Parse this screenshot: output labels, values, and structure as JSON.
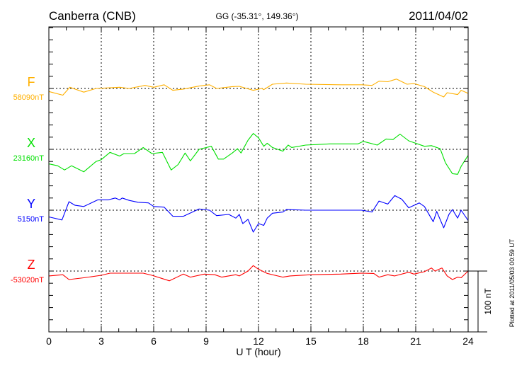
{
  "header": {
    "station": "Canberra (CNB)",
    "coords": "GG (-35.31°, 149.36°)",
    "date": "2011/04/02"
  },
  "footer": {
    "plotted": "Plotted at 2011/05/03 00:59 UT",
    "scale_label": "100 nT"
  },
  "chart_data": {
    "type": "line",
    "title": "Canberra (CNB)",
    "subtitle": "GG (-35.31°, 149.36°)",
    "xlabel": "U T (hour)",
    "ylabel": "",
    "xlim": [
      0,
      24
    ],
    "xticks": [
      0,
      3,
      6,
      9,
      12,
      15,
      18,
      21,
      24
    ],
    "xtick_labels": [
      "0",
      "3",
      "6",
      "9",
      "12",
      "15",
      "18",
      "21",
      "24"
    ],
    "scale_bar_nT": 100,
    "y_tick_step_nT": 20,
    "grid": true,
    "series": [
      {
        "name": "F",
        "baseline_label": "58090nT",
        "baseline_nT": 58090,
        "color": "#ffb000",
        "points": [
          [
            0,
            -5
          ],
          [
            0.8,
            -11
          ],
          [
            1.2,
            2
          ],
          [
            2,
            -6
          ],
          [
            2.7,
            0
          ],
          [
            4.05,
            2
          ],
          [
            4.6,
            0
          ],
          [
            5.5,
            5
          ],
          [
            6,
            2
          ],
          [
            6.6,
            6
          ],
          [
            7.1,
            -3
          ],
          [
            7.7,
            -1
          ],
          [
            8.6,
            4
          ],
          [
            9.2,
            6
          ],
          [
            9.6,
            0
          ],
          [
            10.5,
            3
          ],
          [
            10.9,
            3.5
          ],
          [
            11.7,
            -3
          ],
          [
            12.2,
            0
          ],
          [
            12.3,
            -2
          ],
          [
            12.8,
            7
          ],
          [
            13.6,
            9
          ],
          [
            14.7,
            7
          ],
          [
            16.7,
            6
          ],
          [
            17.9,
            6
          ],
          [
            18.5,
            5
          ],
          [
            18.9,
            12
          ],
          [
            19.4,
            11
          ],
          [
            19.9,
            15.5
          ],
          [
            20.5,
            7
          ],
          [
            20.9,
            8
          ],
          [
            21.5,
            3
          ],
          [
            22,
            -6
          ],
          [
            22.6,
            -14
          ],
          [
            22.8,
            -7
          ],
          [
            23.4,
            -10
          ],
          [
            23.6,
            -3
          ],
          [
            24,
            -8
          ]
        ]
      },
      {
        "name": "X",
        "baseline_label": "23160nT",
        "baseline_nT": 23160,
        "color": "#00e000",
        "points": [
          [
            0,
            -24
          ],
          [
            0.5,
            -27
          ],
          [
            0.9,
            -34
          ],
          [
            1.3,
            -27
          ],
          [
            2,
            -37
          ],
          [
            2.7,
            -20
          ],
          [
            3,
            -17
          ],
          [
            3.5,
            -5
          ],
          [
            4.05,
            -11
          ],
          [
            4.3,
            -7
          ],
          [
            4.9,
            -7
          ],
          [
            5.4,
            3
          ],
          [
            5.9,
            -7
          ],
          [
            6.5,
            -5
          ],
          [
            7,
            -34
          ],
          [
            7.4,
            -25
          ],
          [
            7.8,
            -6
          ],
          [
            8.1,
            -19
          ],
          [
            8.6,
            0
          ],
          [
            9.3,
            5
          ],
          [
            9.7,
            -16
          ],
          [
            10,
            -16
          ],
          [
            10.5,
            -6
          ],
          [
            10.8,
            1
          ],
          [
            11,
            -6
          ],
          [
            11.4,
            15
          ],
          [
            11.7,
            26
          ],
          [
            12,
            19
          ],
          [
            12.3,
            5
          ],
          [
            12.5,
            10
          ],
          [
            12.8,
            3
          ],
          [
            13.4,
            -3
          ],
          [
            13.7,
            7
          ],
          [
            13.9,
            3
          ],
          [
            14.7,
            7
          ],
          [
            16.1,
            9
          ],
          [
            17.7,
            9
          ],
          [
            18,
            13
          ],
          [
            18.8,
            7
          ],
          [
            19.3,
            17
          ],
          [
            19.7,
            16
          ],
          [
            20.1,
            25
          ],
          [
            20.6,
            14
          ],
          [
            21.5,
            5
          ],
          [
            21.9,
            6
          ],
          [
            22.4,
            1
          ],
          [
            22.7,
            -22
          ],
          [
            23.1,
            -40
          ],
          [
            23.4,
            -41
          ],
          [
            23.6,
            -28
          ],
          [
            24,
            -10
          ]
        ]
      },
      {
        "name": "Y",
        "baseline_label": "5150nT",
        "baseline_nT": 5150,
        "color": "#0000ff",
        "points": [
          [
            0,
            -11
          ],
          [
            0.75,
            -16
          ],
          [
            1.15,
            14
          ],
          [
            1.5,
            8
          ],
          [
            2,
            6
          ],
          [
            2.8,
            17
          ],
          [
            3.4,
            17
          ],
          [
            3.8,
            20
          ],
          [
            4.05,
            17
          ],
          [
            4.2,
            20
          ],
          [
            4.6,
            16
          ],
          [
            5.1,
            13
          ],
          [
            5.7,
            12
          ],
          [
            6,
            6
          ],
          [
            6.6,
            5
          ],
          [
            7.1,
            -10
          ],
          [
            7.7,
            -10
          ],
          [
            8.6,
            2
          ],
          [
            9.2,
            0
          ],
          [
            9.6,
            -9
          ],
          [
            10.3,
            -7
          ],
          [
            10.7,
            -13
          ],
          [
            10.9,
            -7
          ],
          [
            11.1,
            -22
          ],
          [
            11.4,
            -15
          ],
          [
            11.7,
            -36
          ],
          [
            12,
            -22
          ],
          [
            12.3,
            -25
          ],
          [
            12.5,
            -13
          ],
          [
            12.8,
            -5
          ],
          [
            13.4,
            -3
          ],
          [
            13.6,
            1
          ],
          [
            14.7,
            0
          ],
          [
            17.9,
            0
          ],
          [
            18.5,
            -3
          ],
          [
            18.9,
            15
          ],
          [
            19.4,
            10
          ],
          [
            19.8,
            24
          ],
          [
            20.2,
            18
          ],
          [
            20.6,
            4
          ],
          [
            21.2,
            12
          ],
          [
            21.5,
            6
          ],
          [
            22,
            -19
          ],
          [
            22.2,
            -2
          ],
          [
            22.6,
            -29
          ],
          [
            22.9,
            -7
          ],
          [
            23.1,
            1
          ],
          [
            23.4,
            -13
          ],
          [
            23.6,
            0
          ],
          [
            24,
            -17
          ]
        ]
      },
      {
        "name": "Z",
        "baseline_label": "-53020nT",
        "baseline_nT": -53020,
        "color": "#ff0000",
        "points": [
          [
            0,
            -8
          ],
          [
            0.8,
            -6
          ],
          [
            1.15,
            -14
          ],
          [
            2,
            -11
          ],
          [
            3,
            -7
          ],
          [
            3.5,
            -3.5
          ],
          [
            4.5,
            -3.5
          ],
          [
            5.4,
            -3.5
          ],
          [
            5.9,
            -7
          ],
          [
            6.9,
            -16
          ],
          [
            7.7,
            -5
          ],
          [
            8.1,
            -10
          ],
          [
            8.9,
            -5
          ],
          [
            9.5,
            -6
          ],
          [
            9.9,
            -10
          ],
          [
            10.7,
            -6
          ],
          [
            10.9,
            -8
          ],
          [
            11.4,
            0
          ],
          [
            11.7,
            9
          ],
          [
            12,
            3
          ],
          [
            12.5,
            -4
          ],
          [
            13.4,
            -10
          ],
          [
            13.8,
            -8
          ],
          [
            15,
            -6
          ],
          [
            16.7,
            -5
          ],
          [
            17.9,
            -3.5
          ],
          [
            18.6,
            -4
          ],
          [
            18.9,
            -10
          ],
          [
            19.4,
            -6
          ],
          [
            19.8,
            -8
          ],
          [
            20.6,
            -2
          ],
          [
            20.9,
            -5
          ],
          [
            21.5,
            -1
          ],
          [
            21.9,
            5
          ],
          [
            22.1,
            0
          ],
          [
            22.5,
            5
          ],
          [
            22.8,
            -8
          ],
          [
            23.1,
            -14
          ],
          [
            23.4,
            -10
          ],
          [
            23.6,
            -11
          ],
          [
            24,
            0
          ]
        ]
      }
    ]
  }
}
